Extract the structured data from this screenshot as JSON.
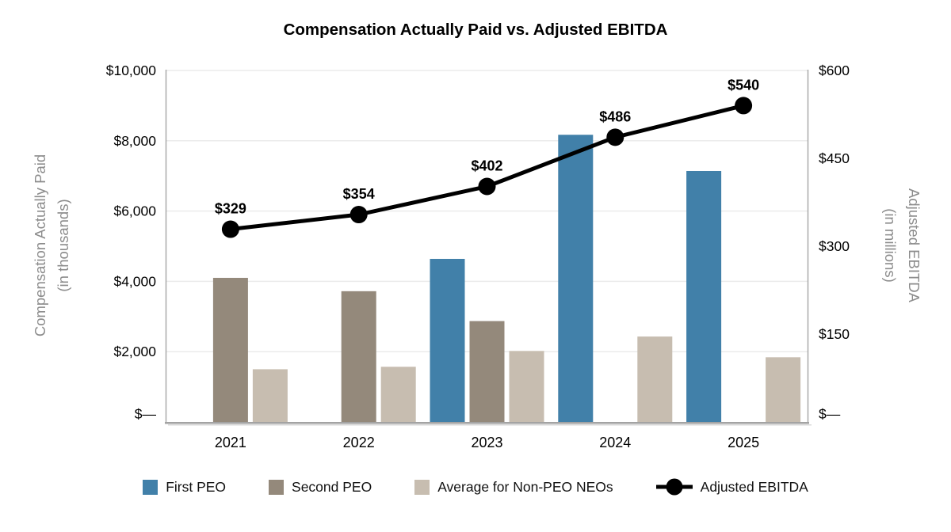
{
  "title": "Compensation Actually Paid vs. Adjusted EBITDA",
  "chart_data": {
    "type": "combo-bar-line",
    "categories": [
      "2021",
      "2022",
      "2023",
      "2024",
      "2025"
    ],
    "bar_series": [
      {
        "id": "first-peo",
        "name": "First PEO",
        "color": "#4180A9",
        "axis": "left",
        "values": [
          null,
          null,
          4640,
          8170,
          7140
        ]
      },
      {
        "id": "second-peo",
        "name": "Second PEO",
        "color": "#94897B",
        "axis": "left",
        "values": [
          4100,
          3720,
          2870,
          null,
          null
        ]
      },
      {
        "id": "avg-non-peo-neos",
        "name": "Average for Non-PEO NEOs",
        "color": "#C7BDB0",
        "axis": "left",
        "values": [
          1500,
          1570,
          2020,
          2430,
          1840
        ]
      }
    ],
    "line_series": {
      "id": "adjusted-ebitda",
      "name": "Adjusted EBITDA",
      "color": "#000000",
      "axis": "right",
      "values": [
        329,
        354,
        402,
        486,
        540
      ],
      "point_labels": [
        "$329",
        "$354",
        "$402",
        "$486",
        "$540"
      ]
    },
    "left_axis": {
      "title": "Compensation Actually Paid",
      "subtitle": "(in thousands)",
      "range": [
        0,
        10000
      ],
      "ticks": [
        {
          "label": "$10,000",
          "value": 10000
        },
        {
          "label": "$8,000",
          "value": 8000
        },
        {
          "label": "$6,000",
          "value": 6000
        },
        {
          "label": "$4,000",
          "value": 4000
        },
        {
          "label": "$2,000",
          "value": 2000
        },
        {
          "label": "$—",
          "value": 0
        }
      ]
    },
    "right_axis": {
      "title": "Adjusted EBITDA",
      "subtitle": "(in millions)",
      "range": [
        0,
        600
      ],
      "ticks": [
        {
          "label": "$600",
          "value": 600
        },
        {
          "label": "$450",
          "value": 450
        },
        {
          "label": "$300",
          "value": 300
        },
        {
          "label": "$150",
          "value": 150
        },
        {
          "label": "$—",
          "value": 0
        }
      ]
    },
    "grid": true,
    "legend_position": "bottom"
  },
  "legend": [
    {
      "id": "first-peo",
      "label": "First PEO",
      "marker": "square",
      "color": "#4180A9"
    },
    {
      "id": "second-peo",
      "label": "Second PEO",
      "marker": "square",
      "color": "#94897B"
    },
    {
      "id": "avg-non-peo-neos",
      "label": "Average for Non-PEO NEOs",
      "marker": "square",
      "color": "#C7BDB0"
    },
    {
      "id": "adjusted-ebitda",
      "label": "Adjusted EBITDA",
      "marker": "line-dot",
      "color": "#000000"
    }
  ],
  "colors": {
    "grid": "#EBEBEB",
    "axis_border": "#A9A9A9",
    "axis_bottom": "#A3A3A3",
    "axis_shadow": "#DADADA",
    "axis_title": "#8C8C8C",
    "background": "#FFFFFF"
  }
}
